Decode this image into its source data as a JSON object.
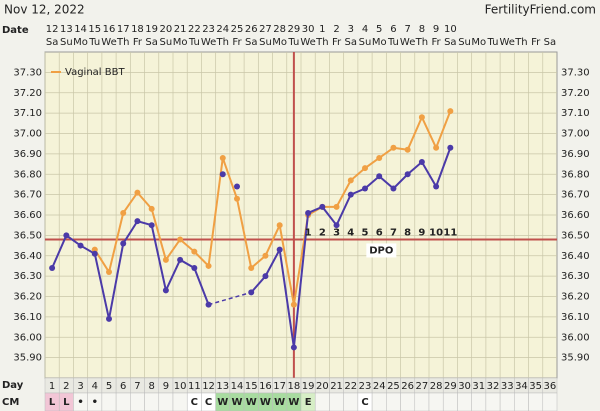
{
  "header": {
    "date": "Nov 12, 2022",
    "site": "FertilityFriend.com"
  },
  "chart_data": {
    "type": "line",
    "date_label": "Date",
    "day_label": "Day",
    "cm_label": "CM",
    "dates": [
      12,
      13,
      14,
      15,
      16,
      17,
      18,
      19,
      20,
      21,
      22,
      23,
      24,
      25,
      26,
      27,
      28,
      29,
      30,
      1,
      2,
      3,
      4,
      5,
      6,
      7,
      8,
      9,
      10,
      null,
      null,
      null,
      null,
      null,
      null,
      null
    ],
    "weekdays": [
      "Sa",
      "Su",
      "Mo",
      "Tu",
      "We",
      "Th",
      "Fr",
      "Sa",
      "Su",
      "Mo",
      "Tu",
      "We",
      "Th",
      "Fr",
      "Sa",
      "Su",
      "Mo",
      "Tu",
      "We",
      "Th",
      "Fr",
      "Sa",
      "Su",
      "Mo",
      "Tu",
      "We",
      "Th",
      "Fr",
      "Sa",
      "Su",
      "Mo",
      "Tu",
      "We",
      "Th",
      "Fr",
      "Sa"
    ],
    "days": [
      1,
      2,
      3,
      4,
      5,
      6,
      7,
      8,
      9,
      10,
      11,
      12,
      13,
      14,
      15,
      16,
      17,
      18,
      19,
      20,
      21,
      22,
      23,
      24,
      25,
      26,
      27,
      28,
      29,
      30,
      31,
      32,
      33,
      34,
      35,
      36
    ],
    "cm": [
      "L",
      "L",
      "•",
      "•",
      null,
      null,
      null,
      null,
      null,
      null,
      "C",
      "C",
      "W",
      "W",
      "W",
      "W",
      "W",
      "W",
      "E",
      null,
      null,
      null,
      "C",
      null,
      null,
      null,
      null,
      null,
      null,
      null,
      null,
      null,
      null,
      null,
      null,
      null
    ],
    "ylim": [
      35.8,
      37.4
    ],
    "yticks": [
      {
        "value": 35.9,
        "label": "35.90"
      },
      {
        "value": 36.0,
        "label": "36.00"
      },
      {
        "value": 36.1,
        "label": "36.10"
      },
      {
        "value": 36.2,
        "label": "36.20"
      },
      {
        "value": 36.3,
        "label": "36.30"
      },
      {
        "value": 36.4,
        "label": "36.40"
      },
      {
        "value": 36.5,
        "label": "36.50"
      },
      {
        "value": 36.6,
        "label": "36.60"
      },
      {
        "value": 36.7,
        "label": "36.70"
      },
      {
        "value": 36.8,
        "label": "36.80"
      },
      {
        "value": 36.9,
        "label": "36.90"
      },
      {
        "value": 37.0,
        "label": "37.00"
      },
      {
        "value": 37.1,
        "label": "37.10"
      },
      {
        "value": 37.2,
        "label": "37.20"
      },
      {
        "value": 37.3,
        "label": "37.30"
      }
    ],
    "grid": true,
    "legend": "upper left",
    "series": [
      {
        "name": "Vaginal BBT",
        "color": "#f0a044",
        "values": [
          null,
          null,
          null,
          36.43,
          36.32,
          36.61,
          36.71,
          36.63,
          36.38,
          36.48,
          36.42,
          36.35,
          36.88,
          36.68,
          36.34,
          36.4,
          36.55,
          36.16,
          36.6,
          36.64,
          36.64,
          36.77,
          36.83,
          36.88,
          36.93,
          36.92,
          37.08,
          36.93,
          37.11,
          null,
          null,
          null,
          null,
          null,
          null,
          null
        ]
      },
      {
        "color": "#4b3aa8",
        "gap_style": "dashed",
        "values": [
          36.34,
          36.5,
          36.45,
          36.41,
          36.09,
          36.46,
          36.57,
          36.55,
          36.23,
          36.38,
          36.34,
          36.16,
          null,
          null,
          36.22,
          36.3,
          36.43,
          35.95,
          36.61,
          36.64,
          36.55,
          36.7,
          36.73,
          36.79,
          36.73,
          36.8,
          36.86,
          36.74,
          36.93,
          null,
          null,
          null,
          null,
          null,
          null,
          null
        ]
      },
      {
        "color": "#4b3aa8",
        "line": false,
        "values": [
          null,
          null,
          null,
          null,
          null,
          null,
          null,
          null,
          null,
          null,
          null,
          null,
          36.8,
          36.74,
          null,
          null,
          null,
          null,
          null,
          null,
          null,
          null,
          null,
          null,
          null,
          null,
          null,
          null,
          null,
          null,
          null,
          null,
          null,
          null,
          null,
          null
        ]
      }
    ],
    "coverline": 36.48,
    "marker_color": "#c0504d",
    "ovulation_day": 18,
    "dpo": [
      null,
      null,
      null,
      null,
      null,
      null,
      null,
      null,
      null,
      null,
      null,
      null,
      null,
      null,
      null,
      null,
      null,
      null,
      1,
      2,
      3,
      4,
      5,
      6,
      7,
      8,
      9,
      10,
      11,
      null,
      null,
      null,
      null,
      null,
      null,
      null
    ],
    "dpo_label": "DPO"
  }
}
